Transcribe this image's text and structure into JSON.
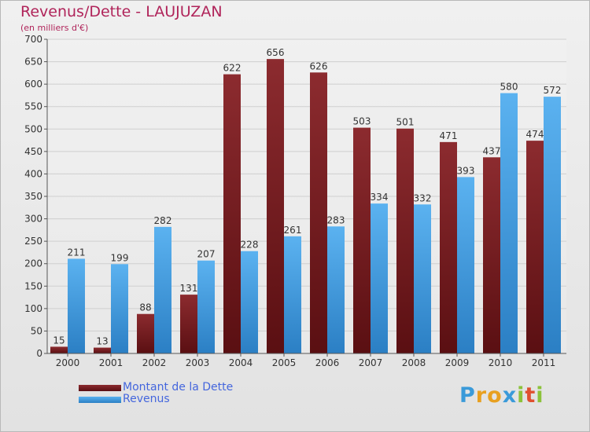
{
  "chart_data": {
    "type": "bar",
    "title": "Revenus/Dette - LAUJUZAN",
    "subtitle": "(en milliers d'€)",
    "categories": [
      "2000",
      "2001",
      "2002",
      "2003",
      "2004",
      "2005",
      "2006",
      "2007",
      "2008",
      "2009",
      "2010",
      "2011"
    ],
    "series": [
      {
        "name": "Montant de la Dette",
        "color": "#7a1e22",
        "values": [
          15,
          13,
          88,
          131,
          622,
          656,
          626,
          503,
          501,
          471,
          437,
          474
        ]
      },
      {
        "name": "Revenus",
        "color": "#4fa6e8",
        "values": [
          211,
          199,
          282,
          207,
          228,
          261,
          283,
          334,
          332,
          393,
          580,
          572
        ]
      }
    ],
    "ylim": [
      0,
      700
    ],
    "yticks": [
      0,
      50,
      100,
      150,
      200,
      250,
      300,
      350,
      400,
      450,
      500,
      550,
      600,
      650,
      700
    ],
    "grid": true,
    "legend": "bottom-left"
  },
  "logo": {
    "text": "Proxiti",
    "letters": [
      "P",
      "r",
      "o",
      "x",
      "i",
      "t",
      "i"
    ]
  }
}
